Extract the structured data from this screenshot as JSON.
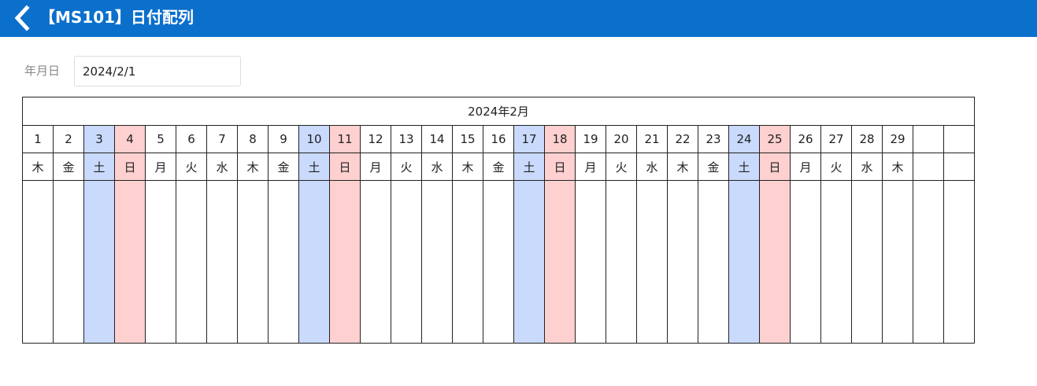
{
  "header": {
    "title": "【MS101】日付配列",
    "back_icon": "chevron-left-icon"
  },
  "form": {
    "date_label": "年月日",
    "date_value": "2024/2/1"
  },
  "calendar": {
    "month_title": "2024年2月",
    "days": [
      {
        "day": "1",
        "weekday": "木",
        "type": "weekday"
      },
      {
        "day": "2",
        "weekday": "金",
        "type": "weekday"
      },
      {
        "day": "3",
        "weekday": "土",
        "type": "sat"
      },
      {
        "day": "4",
        "weekday": "日",
        "type": "sun"
      },
      {
        "day": "5",
        "weekday": "月",
        "type": "weekday"
      },
      {
        "day": "6",
        "weekday": "火",
        "type": "weekday"
      },
      {
        "day": "7",
        "weekday": "水",
        "type": "weekday"
      },
      {
        "day": "8",
        "weekday": "木",
        "type": "weekday"
      },
      {
        "day": "9",
        "weekday": "金",
        "type": "weekday"
      },
      {
        "day": "10",
        "weekday": "土",
        "type": "sat"
      },
      {
        "day": "11",
        "weekday": "日",
        "type": "sun"
      },
      {
        "day": "12",
        "weekday": "月",
        "type": "weekday"
      },
      {
        "day": "13",
        "weekday": "火",
        "type": "weekday"
      },
      {
        "day": "14",
        "weekday": "水",
        "type": "weekday"
      },
      {
        "day": "15",
        "weekday": "木",
        "type": "weekday"
      },
      {
        "day": "16",
        "weekday": "金",
        "type": "weekday"
      },
      {
        "day": "17",
        "weekday": "土",
        "type": "sat"
      },
      {
        "day": "18",
        "weekday": "日",
        "type": "sun"
      },
      {
        "day": "19",
        "weekday": "月",
        "type": "weekday"
      },
      {
        "day": "20",
        "weekday": "火",
        "type": "weekday"
      },
      {
        "day": "21",
        "weekday": "水",
        "type": "weekday"
      },
      {
        "day": "22",
        "weekday": "木",
        "type": "weekday"
      },
      {
        "day": "23",
        "weekday": "金",
        "type": "weekday"
      },
      {
        "day": "24",
        "weekday": "土",
        "type": "sat"
      },
      {
        "day": "25",
        "weekday": "日",
        "type": "sun"
      },
      {
        "day": "26",
        "weekday": "月",
        "type": "weekday"
      },
      {
        "day": "27",
        "weekday": "火",
        "type": "weekday"
      },
      {
        "day": "28",
        "weekday": "水",
        "type": "weekday"
      },
      {
        "day": "29",
        "weekday": "木",
        "type": "weekday"
      },
      {
        "day": "",
        "weekday": "",
        "type": "empty"
      },
      {
        "day": "",
        "weekday": "",
        "type": "empty"
      }
    ]
  },
  "colors": {
    "header_bg": "#0b6fcc",
    "saturday_bg": "#c9dafd",
    "sunday_bg": "#fed0d0"
  }
}
